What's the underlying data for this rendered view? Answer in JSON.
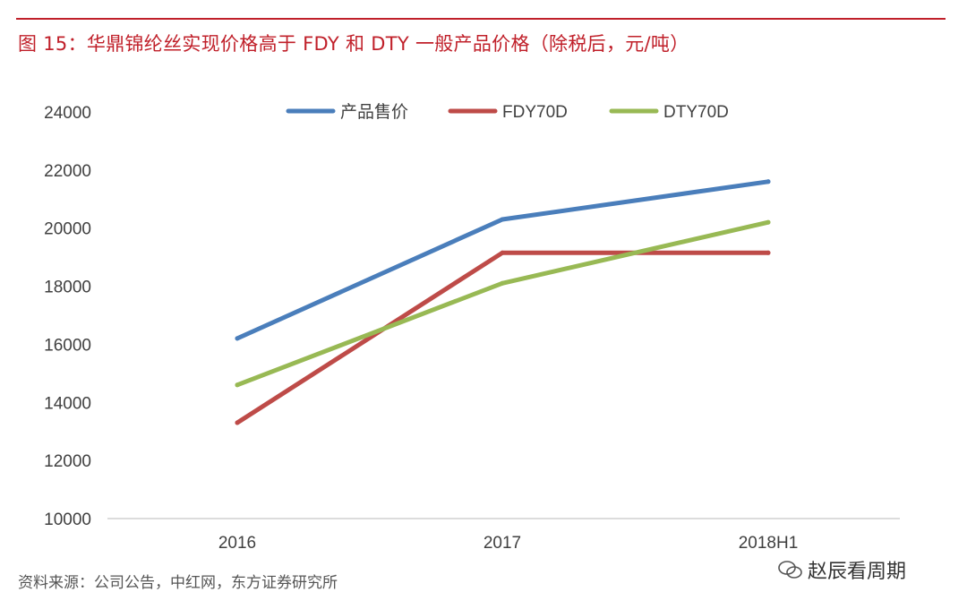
{
  "header": {
    "title": "图 15：华鼎锦纶丝实现价格高于 FDY 和 DTY 一般产品价格（除税后，元/吨）"
  },
  "chart_data": {
    "type": "line",
    "categories": [
      "2016",
      "2017",
      "2018H1"
    ],
    "series": [
      {
        "name": "产品售价",
        "values": [
          16200,
          20300,
          21600
        ],
        "color": "#4a7ebb"
      },
      {
        "name": "FDY70D",
        "values": [
          13300,
          19150,
          19150
        ],
        "color": "#be4b48"
      },
      {
        "name": "DTY70D",
        "values": [
          14600,
          18100,
          20200
        ],
        "color": "#98b954"
      }
    ],
    "ylim": [
      10000,
      24000
    ],
    "yticks": [
      "10000",
      "12000",
      "14000",
      "16000",
      "18000",
      "20000",
      "22000",
      "24000"
    ],
    "xlabel": "",
    "ylabel": "",
    "grid": false,
    "legend_position": "top"
  },
  "footer": {
    "source": "资料来源：公司公告，中红网，东方证券研究所",
    "watermark": "赵辰看周期"
  },
  "icons": {
    "watermark_icon": "wechat-icon"
  }
}
